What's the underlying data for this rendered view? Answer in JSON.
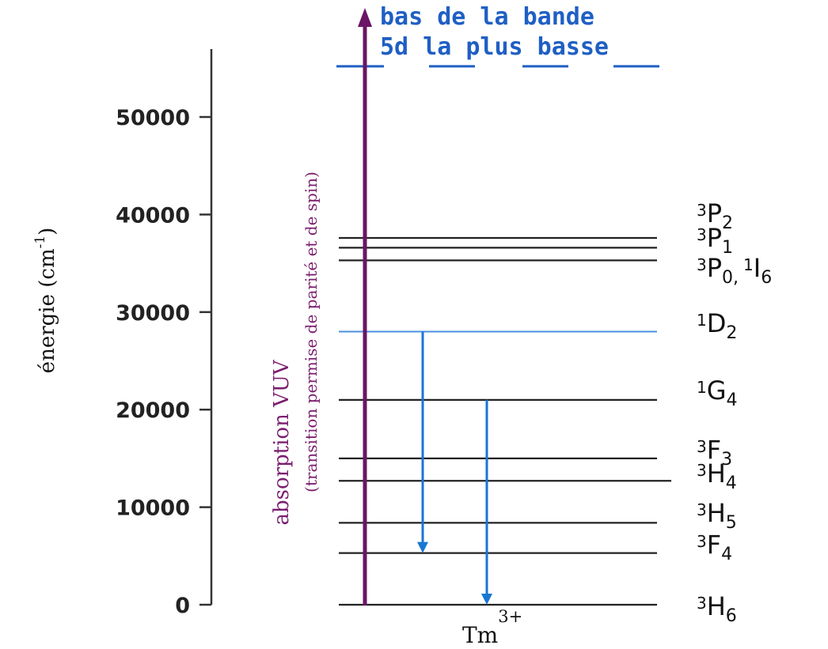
{
  "axis": {
    "title": "énergie (cm",
    "title_sup": "-1",
    "title_close": ")",
    "ticks": [
      {
        "value": 0,
        "label": "0"
      },
      {
        "value": 10000,
        "label": "10000"
      },
      {
        "value": 20000,
        "label": "20000"
      },
      {
        "value": 30000,
        "label": "30000"
      },
      {
        "value": 40000,
        "label": "40000"
      },
      {
        "value": 50000,
        "label": "50000"
      }
    ]
  },
  "absorption": {
    "line1": "absorption VUV",
    "line2": "(transition permise de parité et de spin)",
    "color": "#6a1566"
  },
  "band": {
    "line1": "bas de la bande",
    "line2": "5d la plus basse",
    "energy": 55200,
    "color": "#1f5fc4"
  },
  "ion": {
    "symbol": "Tm",
    "charge": "3+"
  },
  "levels": [
    {
      "id": "3H6",
      "energy": 0,
      "sup": "3",
      "letter": "H",
      "sub": "6",
      "color": "#222222"
    },
    {
      "id": "3F4",
      "energy": 5300,
      "sup": "3",
      "letter": "F",
      "sub": "4",
      "color": "#222222"
    },
    {
      "id": "3H5",
      "energy": 8400,
      "sup": "3",
      "letter": "H",
      "sub": "5",
      "color": "#222222"
    },
    {
      "id": "3H4",
      "energy": 12700,
      "sup": "3",
      "letter": "H",
      "sub": "4",
      "color": "#222222"
    },
    {
      "id": "3F3",
      "energy": 15000,
      "sup": "3",
      "letter": "F",
      "sub": "3",
      "color": "#222222"
    },
    {
      "id": "1G4",
      "energy": 21000,
      "sup": "1",
      "letter": "G",
      "sub": "4",
      "color": "#222222"
    },
    {
      "id": "1D2",
      "energy": 28000,
      "sup": "1",
      "letter": "D",
      "sub": "2",
      "color": "#4a90e2"
    },
    {
      "id": "3P0_1I6",
      "energy": 35300,
      "sup": "3",
      "letter": "P",
      "sub": "0,",
      "extra_sup": "1",
      "extra_letter": "I",
      "extra_sub": "6",
      "color": "#222222"
    },
    {
      "id": "3P1",
      "energy": 36600,
      "sup": "3",
      "letter": "P",
      "sub": "1",
      "color": "#222222"
    },
    {
      "id": "3P2",
      "energy": 37600,
      "sup": "3",
      "letter": "P",
      "sub": "2",
      "color": "#222222"
    }
  ],
  "transitions": [
    {
      "from": 28000,
      "to": 5300,
      "color": "#1976d2"
    },
    {
      "from": 21000,
      "to": 0,
      "color": "#1976d2"
    }
  ]
}
